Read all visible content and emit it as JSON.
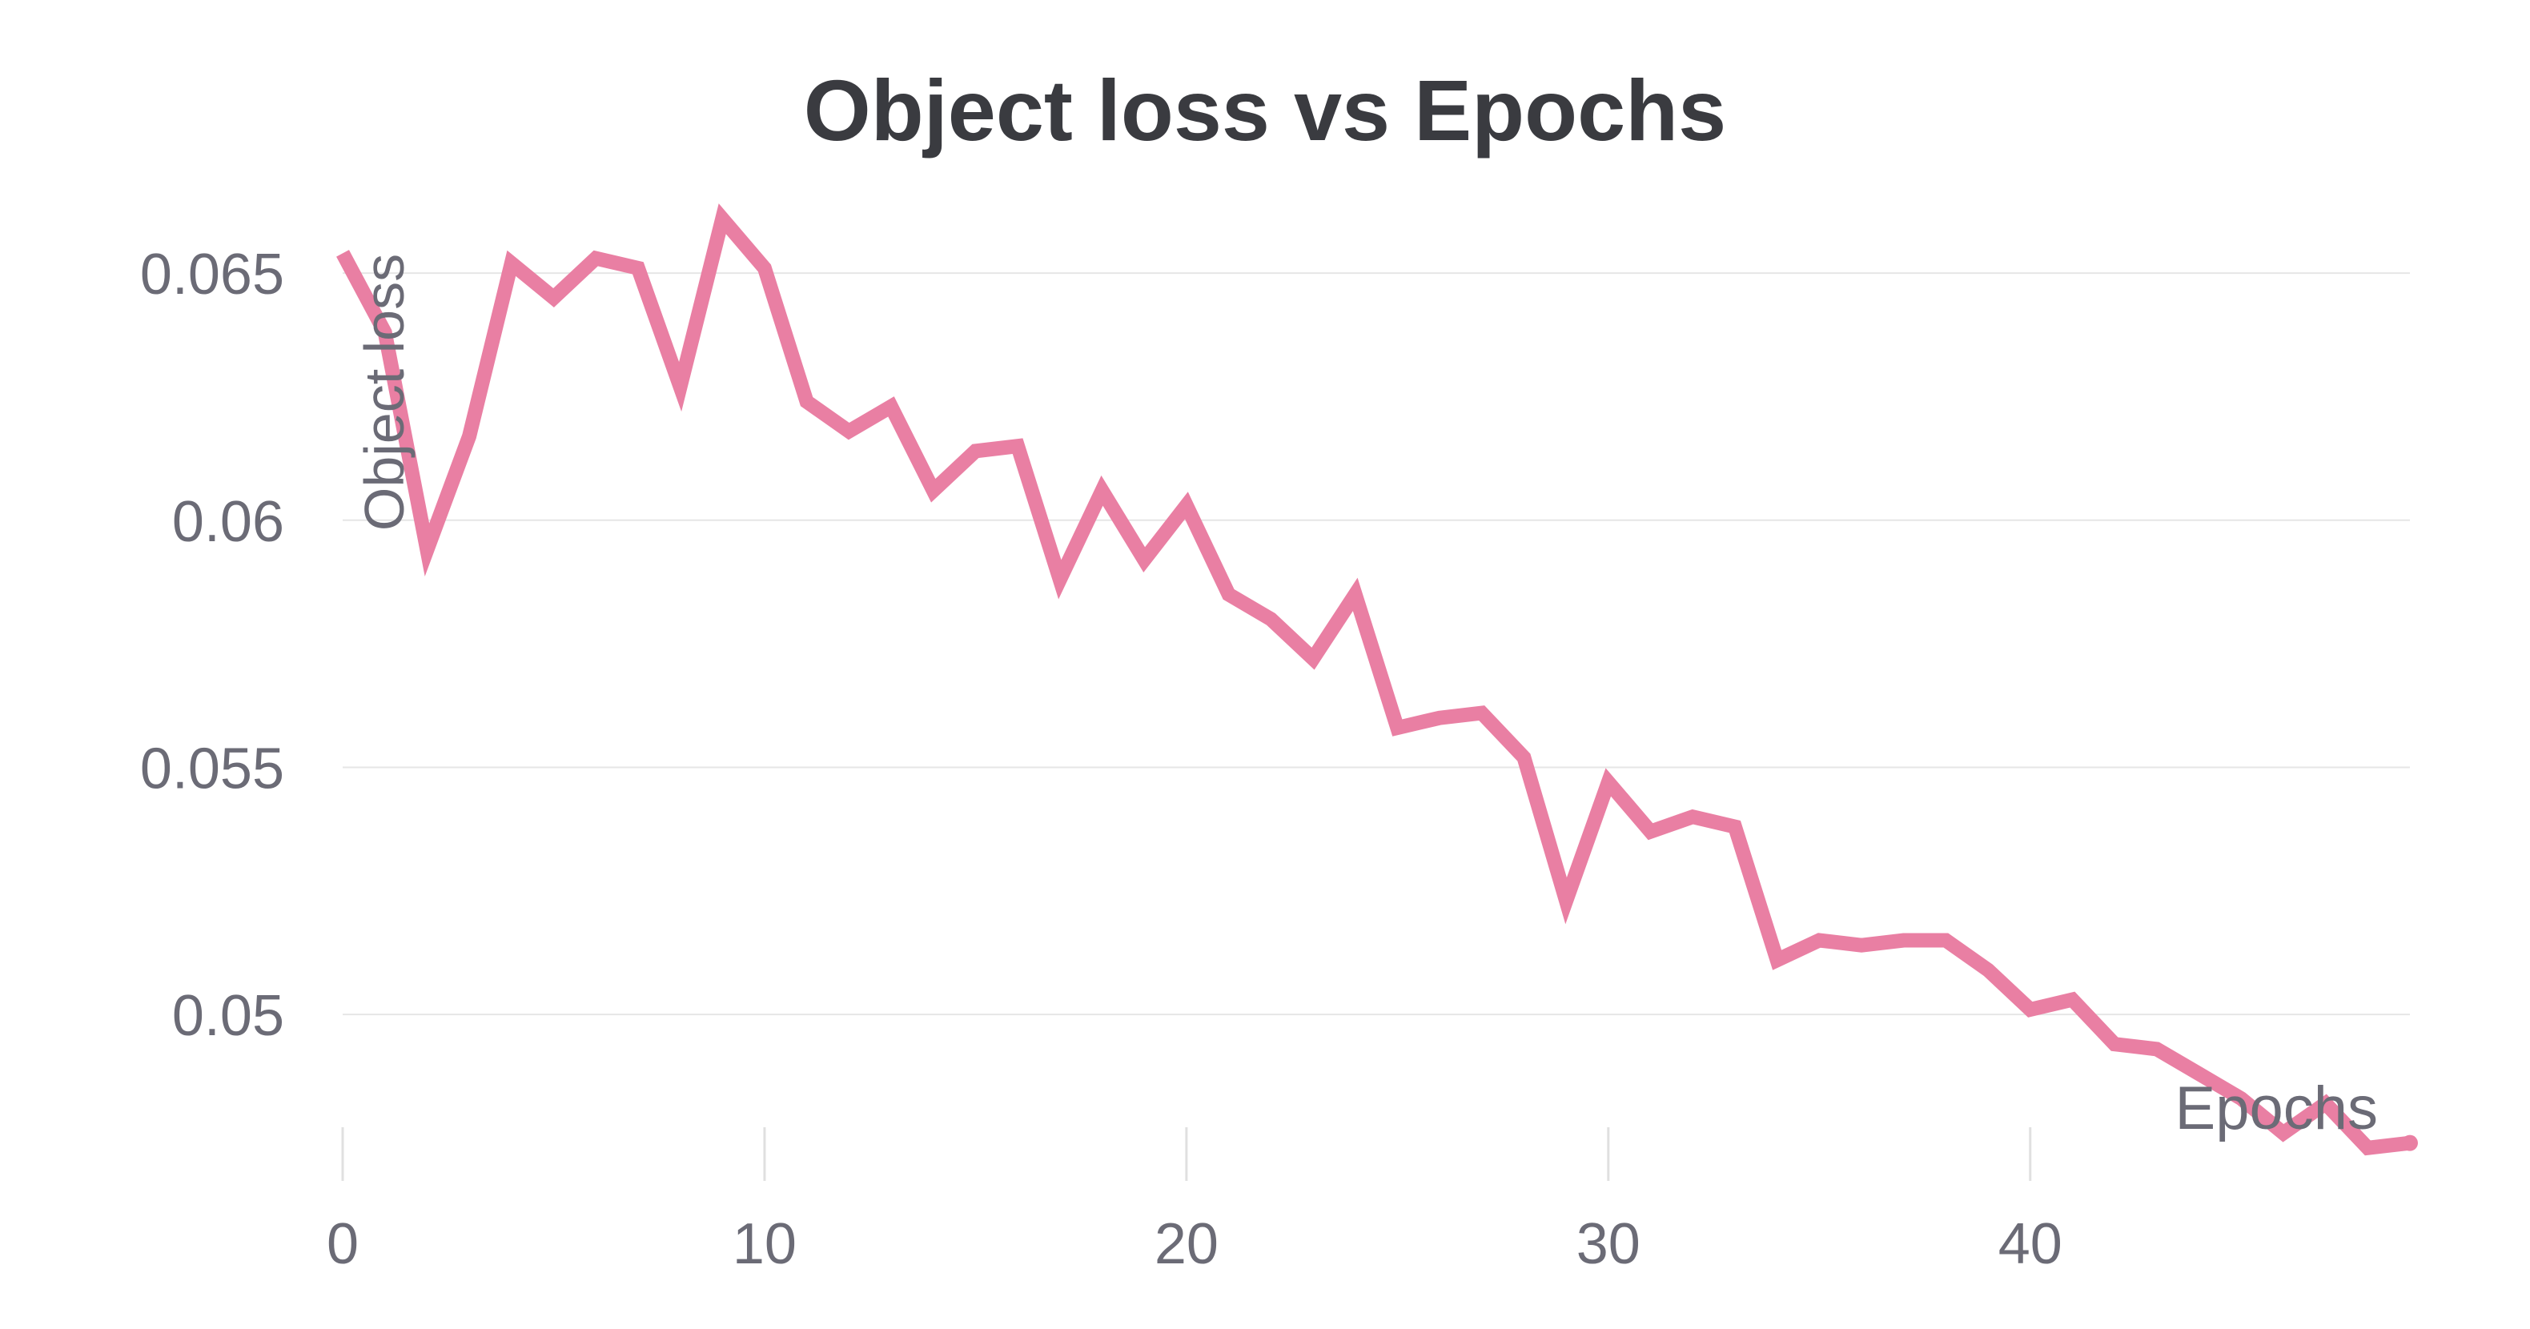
{
  "chart_data": {
    "type": "line",
    "title": "Object loss vs Epochs",
    "xlabel": "Epochs",
    "ylabel": "Object loss",
    "xlim": [
      0,
      49
    ],
    "ylim": [
      0.0472,
      0.0668
    ],
    "x_ticks": [
      0,
      10,
      20,
      30,
      40
    ],
    "x_tick_labels": [
      "0",
      "10",
      "20",
      "30",
      "40"
    ],
    "y_ticks": [
      0.05,
      0.055,
      0.06,
      0.065
    ],
    "y_tick_labels": [
      "0.05",
      "0.055",
      "0.06",
      "0.065"
    ],
    "grid": true,
    "color": "#e97fa3",
    "series": [
      {
        "x": [
          0,
          1,
          2,
          3,
          4,
          5,
          6,
          7,
          8,
          9,
          10,
          11,
          12,
          13,
          14,
          15,
          16,
          17,
          18,
          19,
          20,
          21,
          22,
          23,
          24,
          25,
          26,
          27,
          28,
          29,
          30,
          31,
          32,
          33,
          34,
          35,
          36,
          37,
          38,
          39,
          40,
          41,
          42,
          43,
          44,
          45,
          46,
          47,
          48,
          49
        ],
        "values": [
          0.0654,
          0.0638,
          0.0594,
          0.0617,
          0.0652,
          0.0645,
          0.0653,
          0.0651,
          0.0627,
          0.0661,
          0.0651,
          0.0624,
          0.0618,
          0.0623,
          0.0606,
          0.0614,
          0.0615,
          0.0588,
          0.0606,
          0.0592,
          0.0603,
          0.0585,
          0.058,
          0.0572,
          0.0585,
          0.0558,
          0.056,
          0.0561,
          0.0552,
          0.0523,
          0.0547,
          0.0537,
          0.054,
          0.0538,
          0.0511,
          0.0515,
          0.0514,
          0.0515,
          0.0515,
          0.0509,
          0.0501,
          0.0503,
          0.0494,
          0.0493,
          0.0488,
          0.0483,
          0.0476,
          0.0482,
          0.0473,
          0.0474
        ]
      }
    ]
  }
}
